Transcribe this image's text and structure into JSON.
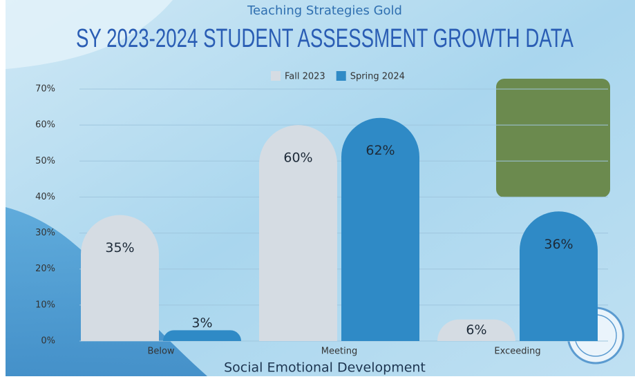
{
  "chart_data": {
    "type": "bar",
    "subtitle": "Teaching Strategies Gold",
    "title": "SY 2023-2024 STUDENT ASSESSMENT GROWTH DATA",
    "x_label": "Social Emotional Development",
    "categories": [
      "Below",
      "Meeting",
      "Exceeding"
    ],
    "series": [
      {
        "name": "Fall 2023",
        "color": "#d5dce3",
        "values": [
          35,
          60,
          6
        ],
        "value_labels": [
          "35%",
          "60%",
          "6%"
        ]
      },
      {
        "name": "Spring 2024",
        "color": "#2f8ac6",
        "values": [
          3,
          62,
          36
        ],
        "value_labels": [
          "3%",
          "62%",
          "36%"
        ]
      }
    ],
    "ylim": [
      0,
      70
    ],
    "yticks": [
      {
        "value": 0,
        "label": "0%"
      },
      {
        "value": 10,
        "label": "10%"
      },
      {
        "value": 20,
        "label": "20%"
      },
      {
        "value": 30,
        "label": "30%"
      },
      {
        "value": 40,
        "label": "40%"
      },
      {
        "value": 50,
        "label": "50%"
      },
      {
        "value": 60,
        "label": "60%"
      },
      {
        "value": 70,
        "label": "70%"
      }
    ],
    "grid": true,
    "legend": "top"
  }
}
